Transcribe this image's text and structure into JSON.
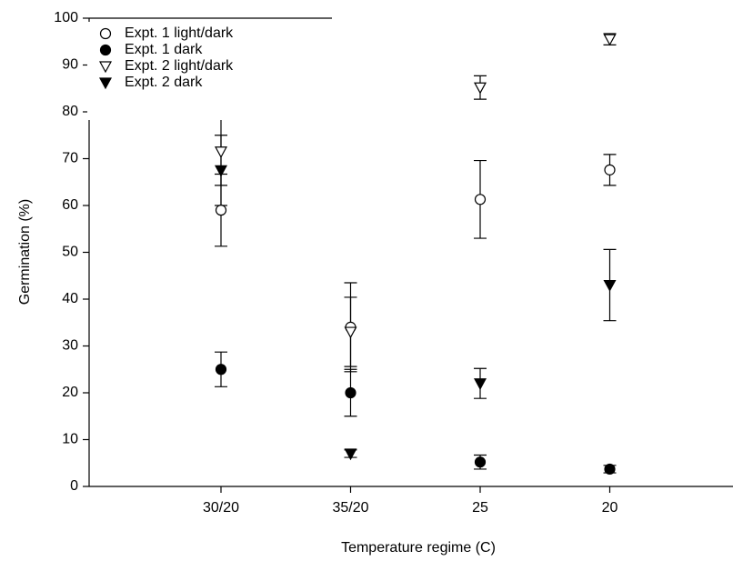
{
  "chart_data": {
    "type": "scatter",
    "x_label": "Temperature regime (C)",
    "y_label": "Germination (%)",
    "categories": [
      "30/20",
      "35/20",
      "25",
      "20"
    ],
    "ylim": [
      0,
      100
    ],
    "yticks": [
      0,
      10,
      20,
      30,
      40,
      50,
      60,
      70,
      80,
      90,
      100
    ],
    "legend": "upper left",
    "series": [
      {
        "name": "Expt. 1 light/dark",
        "color": "#000000",
        "marker": "circle",
        "filled": false,
        "values": [
          59,
          34,
          61.3,
          67.6
        ],
        "errors": [
          7.7,
          9.5,
          8.3,
          3.3
        ]
      },
      {
        "name": "Expt. 1 dark",
        "color": "#000000",
        "marker": "circle",
        "filled": true,
        "values": [
          25,
          20,
          5.2,
          3.7
        ],
        "errors": [
          3.7,
          5,
          1.5,
          0.8
        ]
      },
      {
        "name": "Expt. 2 light/dark",
        "color": "#000000",
        "marker": "triangle-down",
        "filled": false,
        "values": [
          71.5,
          33,
          85.2,
          95.5
        ],
        "errors": [
          7.2,
          7.4,
          2.5,
          1.2
        ]
      },
      {
        "name": "Expt. 2 dark",
        "color": "#000000",
        "marker": "triangle-down",
        "filled": true,
        "values": [
          67.5,
          7,
          22,
          43
        ],
        "errors": [
          7.5,
          0.8,
          3.2,
          7.6
        ]
      }
    ]
  }
}
